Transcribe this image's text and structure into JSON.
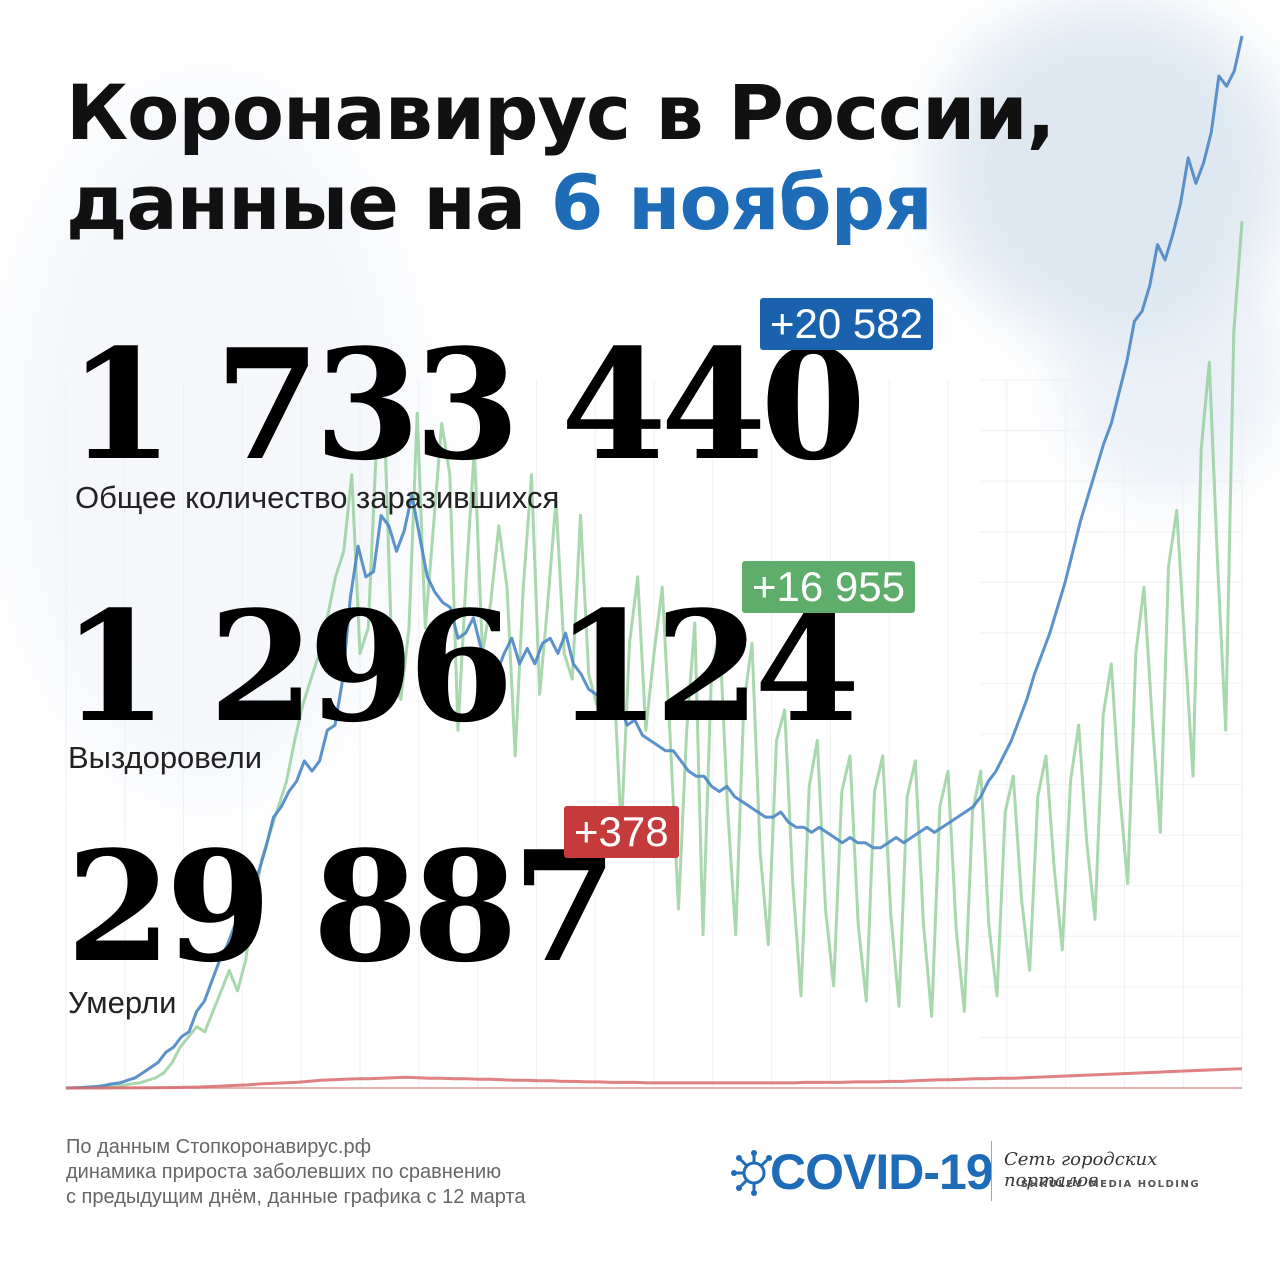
{
  "header": {
    "title_line1": "Коронавирус в России,",
    "title_line2_prefix": "данные на ",
    "title_line2_date": "6 ноября"
  },
  "stats": {
    "infected": {
      "value": "1 733 440",
      "delta": "+20 582",
      "label": "Общее количество заразившихся"
    },
    "recovered": {
      "value": "1 296 124",
      "delta": "+16 955",
      "label": "Выздоровели"
    },
    "deaths": {
      "value": "29 887",
      "delta": "+378",
      "label": "Умерли"
    }
  },
  "footer": {
    "line1": "По данным Стопкоронавирус.рф",
    "line2": "динамика прироста заболевших по сравнению",
    "line3": "с предыдущим днём, данные графика с 12 марта"
  },
  "logo": {
    "text": "COVID-19",
    "network": "Сеть городских порталов",
    "holding": "SHKULEV MEDIA HOLDING"
  },
  "colors": {
    "accent_blue": "#1e6bb8",
    "badge_blue": "#1a62ad",
    "badge_green": "#5fad6b",
    "badge_red": "#c53a3a",
    "line_infected": "#4a86c5",
    "line_recovered": "#8ccb94",
    "line_deaths": "#d96b6b"
  },
  "chart_data": {
    "type": "line",
    "title": "",
    "xlabel": "",
    "ylabel": "",
    "x_start": "12 марта",
    "x_end": "6 ноября",
    "ylim": [
      0,
      20582
    ],
    "grid": true,
    "series": [
      {
        "name": "Общее количество заразившихся",
        "values": [
          0,
          5,
          10,
          20,
          30,
          50,
          80,
          100,
          150,
          200,
          300,
          400,
          500,
          700,
          800,
          1000,
          1100,
          1500,
          1700,
          2100,
          2500,
          2800,
          3200,
          3500,
          4000,
          4200,
          4700,
          5300,
          5500,
          5800,
          6000,
          6400,
          6200,
          6400,
          7000,
          7100,
          8000,
          9600,
          10600,
          10000,
          10100,
          11200,
          11000,
          10500,
          10900,
          11600,
          10800,
          10000,
          9700,
          9500,
          9400,
          8800,
          8900,
          9200,
          8600,
          8400,
          8100,
          8500,
          8800,
          8300,
          8600,
          8300,
          8700,
          8800,
          8500,
          8900,
          8300,
          8100,
          7800,
          7700,
          7600,
          7400,
          7500,
          7100,
          7200,
          6900,
          6800,
          6700,
          6600,
          6600,
          6400,
          6200,
          6100,
          6100,
          5900,
          5800,
          5900,
          5700,
          5600,
          5500,
          5400,
          5300,
          5300,
          5400,
          5200,
          5100,
          5100,
          5000,
          5100,
          5000,
          4900,
          4800,
          4900,
          4800,
          4800,
          4700,
          4700,
          4800,
          4900,
          4800,
          4900,
          5000,
          5100,
          5000,
          5100,
          5200,
          5300,
          5400,
          5500,
          5700,
          6000,
          6200,
          6500,
          6800,
          7200,
          7600,
          8100,
          8500,
          8900,
          9400,
          9900,
          10500,
          11100,
          11600,
          12100,
          12600,
          13000,
          13600,
          14200,
          15000,
          15200,
          15700,
          16500,
          16200,
          16700,
          17300,
          18200,
          17700,
          18100,
          18700,
          19800,
          19600,
          19900,
          20582
        ]
      },
      {
        "name": "Выздоровели",
        "values": [
          0,
          0,
          0,
          5,
          10,
          20,
          30,
          50,
          80,
          100,
          150,
          200,
          300,
          500,
          800,
          1000,
          1200,
          1100,
          1500,
          1900,
          2300,
          1900,
          2500,
          3600,
          4500,
          5000,
          5500,
          6000,
          6800,
          7500,
          8000,
          8500,
          9200,
          10000,
          10500,
          12000,
          8500,
          9000,
          12500,
          13000,
          8000,
          7600,
          9000,
          13200,
          9000,
          11000,
          13000,
          12000,
          7000,
          10000,
          12500,
          8500,
          9500,
          11000,
          9800,
          6500,
          9800,
          12000,
          7700,
          9500,
          11500,
          8500,
          8000,
          11200,
          8100,
          7500,
          9000,
          8300,
          5000,
          8700,
          10000,
          7000,
          8500,
          9800,
          6800,
          3500,
          7000,
          9100,
          3000,
          8000,
          9000,
          5500,
          3000,
          7500,
          8700,
          4600,
          2800,
          6800,
          7400,
          4000,
          1800,
          5900,
          6800,
          3500,
          2000,
          5800,
          6500,
          3200,
          1700,
          5800,
          6500,
          3400,
          1600,
          5700,
          6400,
          3200,
          1400,
          5500,
          6200,
          3100,
          1500,
          5400,
          6200,
          3200,
          1800,
          5400,
          6100,
          3700,
          2300,
          5700,
          6500,
          4300,
          2700,
          6000,
          7100,
          4800,
          3300,
          7300,
          8300,
          5800,
          4000,
          8500,
          9800,
          7200,
          5000,
          10200,
          11300,
          8700,
          6100,
          12500,
          14200,
          10300,
          7000,
          14800,
          16955
        ]
      },
      {
        "name": "Умерли",
        "values": [
          0,
          0,
          0,
          0,
          1,
          2,
          3,
          5,
          8,
          10,
          15,
          20,
          30,
          40,
          50,
          60,
          80,
          90,
          100,
          110,
          130,
          150,
          160,
          170,
          180,
          180,
          190,
          200,
          210,
          200,
          190,
          190,
          180,
          180,
          170,
          170,
          160,
          150,
          150,
          140,
          140,
          130,
          130,
          120,
          120,
          110,
          110,
          110,
          100,
          100,
          100,
          100,
          100,
          100,
          100,
          100,
          100,
          100,
          100,
          100,
          100,
          110,
          110,
          110,
          110,
          120,
          120,
          120,
          130,
          130,
          140,
          150,
          160,
          160,
          170,
          180,
          180,
          190,
          190,
          200,
          210,
          220,
          230,
          240,
          250,
          260,
          270,
          280,
          290,
          300,
          310,
          320,
          330,
          340,
          350,
          360,
          370,
          378
        ]
      }
    ]
  }
}
